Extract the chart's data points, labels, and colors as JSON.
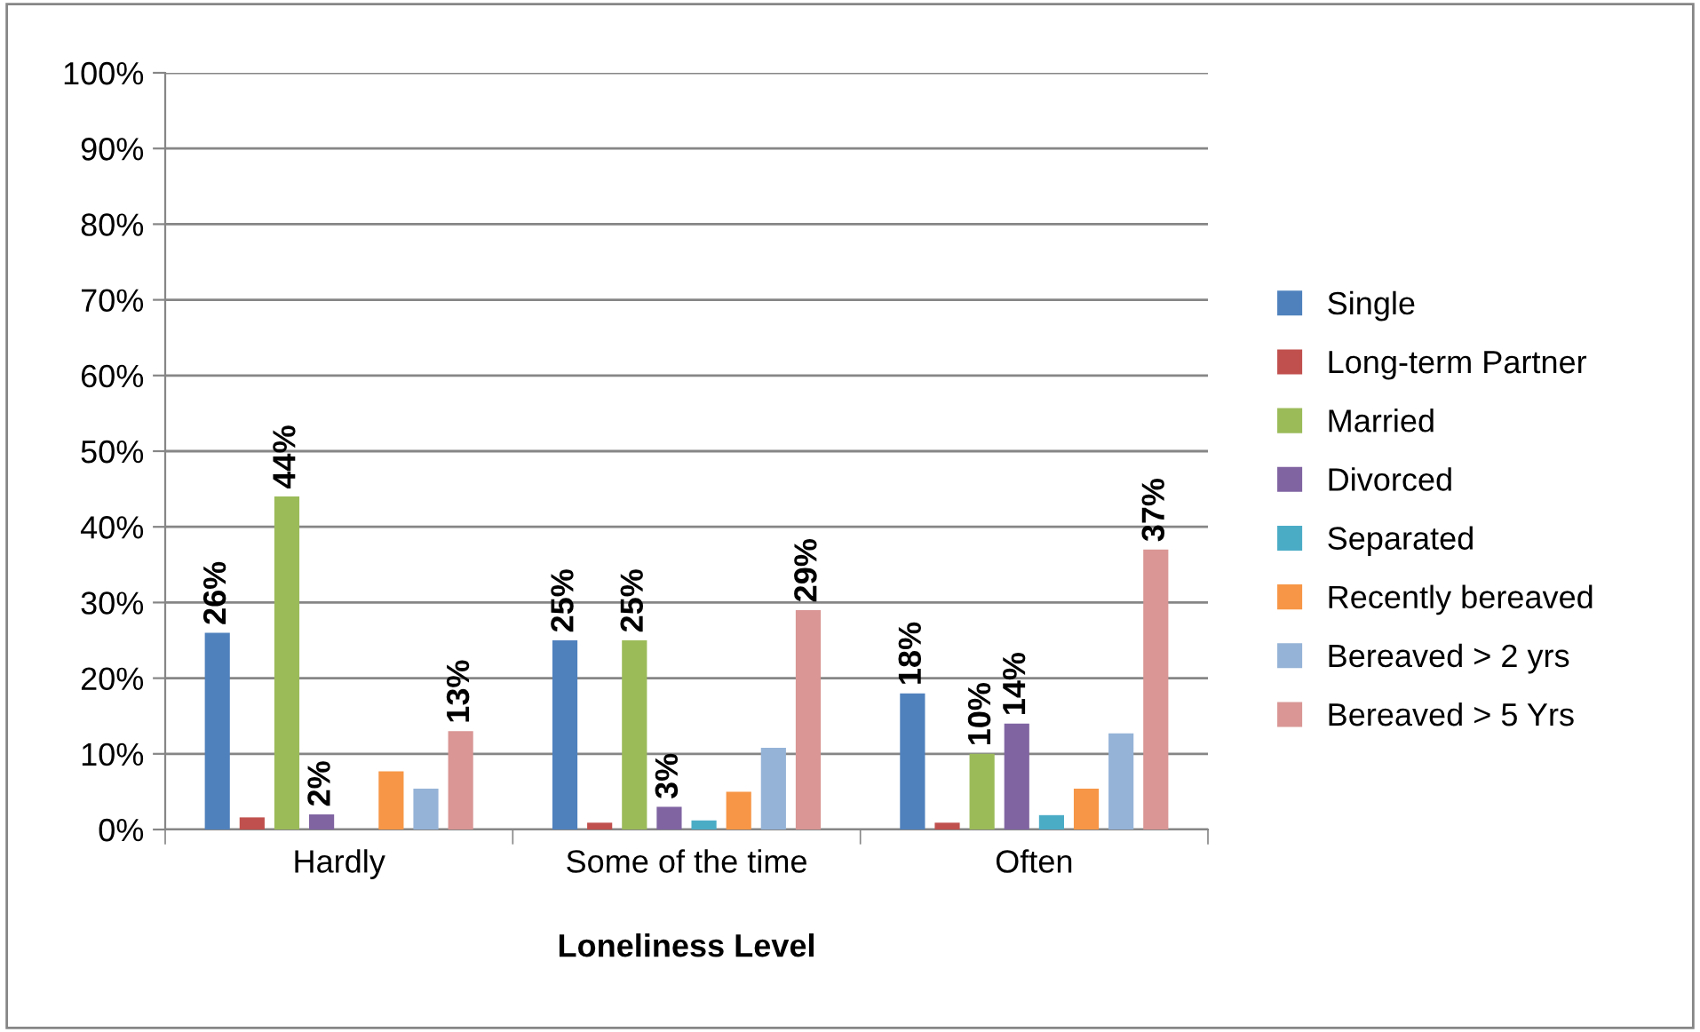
{
  "chart_data": {
    "type": "bar",
    "xlabel": "Loneliness Level",
    "categories": [
      "Hardly",
      "Some of the time",
      "Often"
    ],
    "ylim": [
      0,
      100
    ],
    "yticks": [
      {
        "value": 0,
        "label": "0%"
      },
      {
        "value": 10,
        "label": "10%"
      },
      {
        "value": 20,
        "label": "20%"
      },
      {
        "value": 30,
        "label": "30%"
      },
      {
        "value": 40,
        "label": "40%"
      },
      {
        "value": 50,
        "label": "50%"
      },
      {
        "value": 60,
        "label": "60%"
      },
      {
        "value": 70,
        "label": "70%"
      },
      {
        "value": 80,
        "label": "80%"
      },
      {
        "value": 90,
        "label": "90%"
      },
      {
        "value": 100,
        "label": "100%"
      }
    ],
    "grid": "y",
    "legend": "right",
    "series": [
      {
        "name": "Single",
        "color": "#4f81bd",
        "values": [
          26,
          25,
          18
        ],
        "value_labels": [
          "26%",
          "25%",
          "18%"
        ]
      },
      {
        "name": "Long-term Partner",
        "color": "#c0504d",
        "values": [
          1.6,
          0.9,
          0.9
        ]
      },
      {
        "name": "Married",
        "color": "#9bbb59",
        "values": [
          44,
          25,
          10
        ],
        "value_labels": [
          "44%",
          "25%",
          "10%"
        ]
      },
      {
        "name": "Divorced",
        "color": "#8064a2",
        "values": [
          2,
          3,
          14
        ],
        "value_labels": [
          "2%",
          "3%",
          "14%"
        ]
      },
      {
        "name": "Separated",
        "color": "#4bacc6",
        "values": [
          null,
          1.2,
          1.9
        ]
      },
      {
        "name": "Recently bereaved",
        "color": "#f79646",
        "values": [
          7.7,
          5.0,
          5.4
        ]
      },
      {
        "name": "Bereaved > 2 yrs",
        "color": "#95b3d7",
        "values": [
          5.4,
          10.8,
          12.7
        ]
      },
      {
        "name": "Bereaved > 5 Yrs",
        "color": "#d99694",
        "values": [
          13,
          29,
          37
        ],
        "value_labels": [
          "13%",
          "29%",
          "37%"
        ]
      }
    ]
  }
}
